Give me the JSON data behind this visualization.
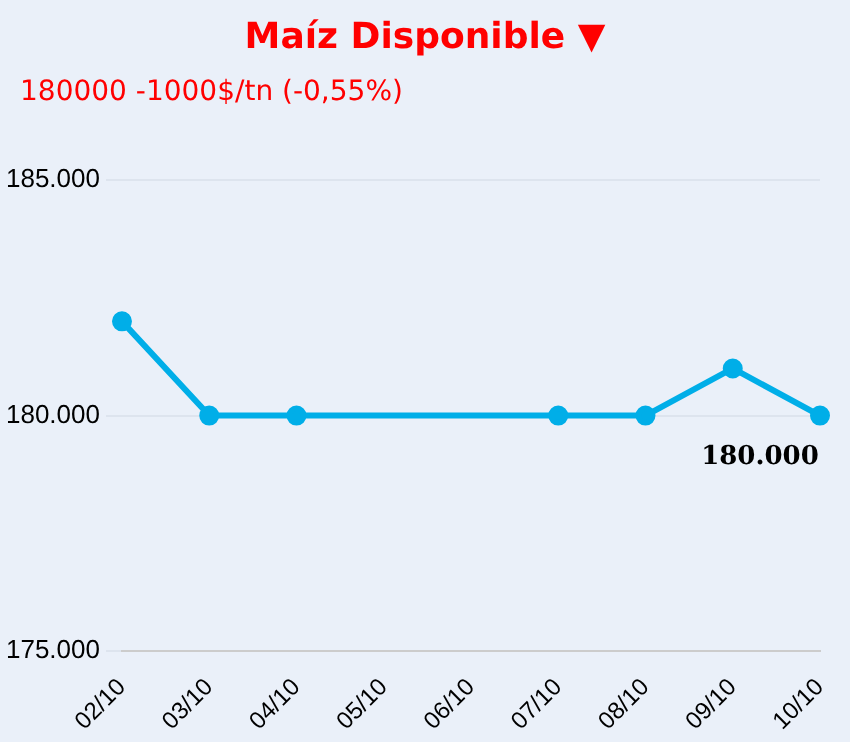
{
  "chart_data": {
    "type": "line",
    "title": "Maíz Disponible ▼",
    "subtitle": "180000 -1000$/tn (-0,55%)",
    "categories": [
      "02/10",
      "03/10",
      "04/10",
      "05/10",
      "06/10",
      "07/10",
      "08/10",
      "09/10",
      "10/10"
    ],
    "series": [
      {
        "color": "#00aee8",
        "values": [
          182000,
          180000,
          180000,
          null,
          null,
          180000,
          180000,
          181000,
          180000
        ]
      }
    ],
    "ylim": [
      175000,
      185000
    ],
    "yticks": [
      {
        "value": 175000,
        "label": "175.000"
      },
      {
        "value": 180000,
        "label": "180.000"
      },
      {
        "value": 185000,
        "label": "185.000"
      }
    ],
    "annotations": [
      {
        "text": "180.000",
        "x": "10/10",
        "y": 180000
      }
    ],
    "grid": "y",
    "legend": false,
    "marker": "circle",
    "line_style": "solid"
  }
}
